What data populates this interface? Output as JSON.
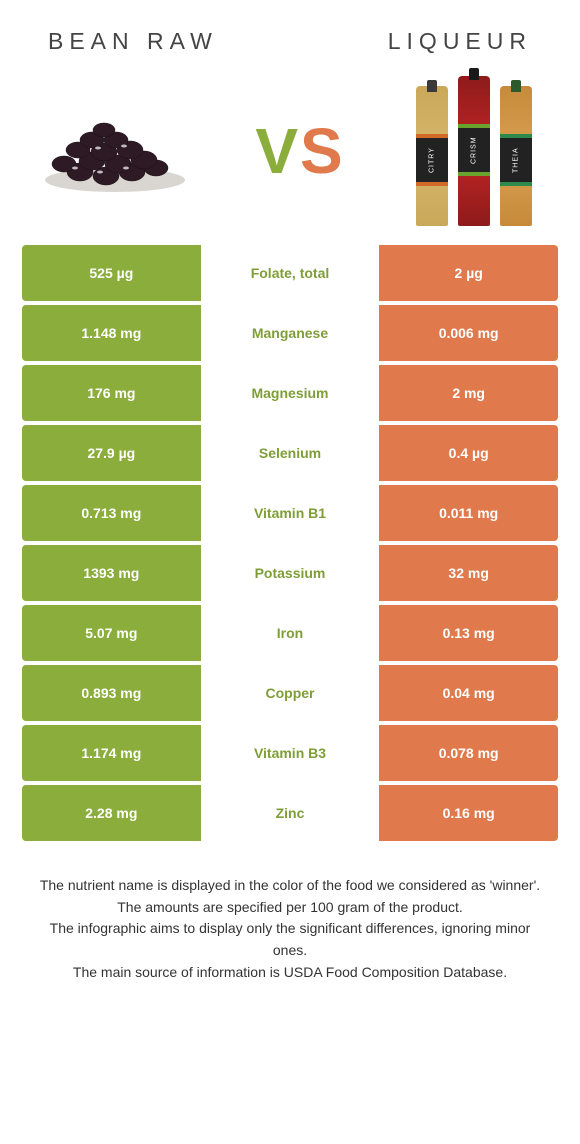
{
  "header": {
    "left_title": "BEAN RAW",
    "right_title": "LIQUEUR"
  },
  "vs": {
    "v": "V",
    "s": "S"
  },
  "bottles": {
    "b1": "CITRY",
    "b2": "CRISM",
    "b3": "THEIA"
  },
  "colors": {
    "green_bg": "#8aad3b",
    "orange_bg": "#e07a4c",
    "white_text": "#ffffff",
    "green_text": "#7f9e38",
    "orange_text": "#d8703f"
  },
  "rows": [
    {
      "left": "525 µg",
      "mid": "Folate, total",
      "right": "2 µg",
      "winner": "left"
    },
    {
      "left": "1.148 mg",
      "mid": "Manganese",
      "right": "0.006 mg",
      "winner": "left"
    },
    {
      "left": "176 mg",
      "mid": "Magnesium",
      "right": "2 mg",
      "winner": "left"
    },
    {
      "left": "27.9 µg",
      "mid": "Selenium",
      "right": "0.4 µg",
      "winner": "left"
    },
    {
      "left": "0.713 mg",
      "mid": "Vitamin B1",
      "right": "0.011 mg",
      "winner": "left"
    },
    {
      "left": "1393 mg",
      "mid": "Potassium",
      "right": "32 mg",
      "winner": "left"
    },
    {
      "left": "5.07 mg",
      "mid": "Iron",
      "right": "0.13 mg",
      "winner": "left"
    },
    {
      "left": "0.893 mg",
      "mid": "Copper",
      "right": "0.04 mg",
      "winner": "left"
    },
    {
      "left": "1.174 mg",
      "mid": "Vitamin B3",
      "right": "0.078 mg",
      "winner": "left"
    },
    {
      "left": "2.28 mg",
      "mid": "Zinc",
      "right": "0.16 mg",
      "winner": "left"
    }
  ],
  "caption": {
    "l1": "The nutrient name is displayed in the color of the food we considered as 'winner'.",
    "l2": "The amounts are specified per 100 gram of the product.",
    "l3": "The infographic aims to display only the significant differences, ignoring minor ones.",
    "l4": "The main source of information is USDA Food Composition Database."
  }
}
